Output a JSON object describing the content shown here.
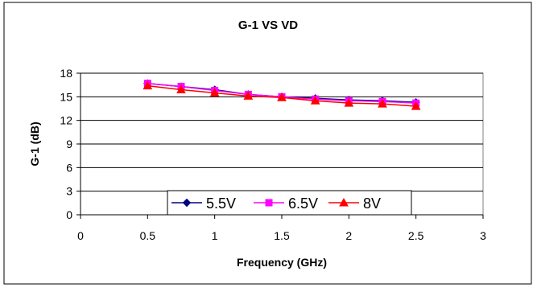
{
  "chart_data": {
    "type": "line",
    "title": "G-1 VS VD",
    "xlabel": "Frequency (GHz)",
    "ylabel": "G-1 (dB)",
    "xlim": [
      0,
      3
    ],
    "ylim": [
      0,
      18
    ],
    "xticks": [
      0,
      0.5,
      1,
      1.5,
      2,
      2.5,
      3
    ],
    "yticks": [
      0,
      3,
      6,
      9,
      12,
      15,
      18
    ],
    "x_tick_labels": [
      "0",
      "0.5",
      "1",
      "1.5",
      "2",
      "2.5",
      "3"
    ],
    "y_tick_labels": [
      "0",
      "3",
      "6",
      "9",
      "12",
      "15",
      "18"
    ],
    "grid": "horizontal",
    "legend_position": "bottom-center",
    "x": [
      0.5,
      0.75,
      1.0,
      1.25,
      1.5,
      1.75,
      2.0,
      2.25,
      2.5
    ],
    "series": [
      {
        "name": "5.5V",
        "color": "#000080",
        "marker": "diamond",
        "values": [
          16.7,
          16.3,
          15.9,
          15.3,
          15.0,
          14.8,
          14.6,
          14.5,
          14.3
        ]
      },
      {
        "name": "6.5V",
        "color": "#FF00FF",
        "marker": "square",
        "values": [
          16.7,
          16.3,
          15.8,
          15.3,
          15.0,
          14.7,
          14.5,
          14.4,
          14.2
        ]
      },
      {
        "name": "8V",
        "color": "#FF0000",
        "marker": "triangle",
        "values": [
          16.4,
          15.9,
          15.5,
          15.1,
          14.9,
          14.5,
          14.2,
          14.1,
          13.8
        ]
      }
    ]
  }
}
